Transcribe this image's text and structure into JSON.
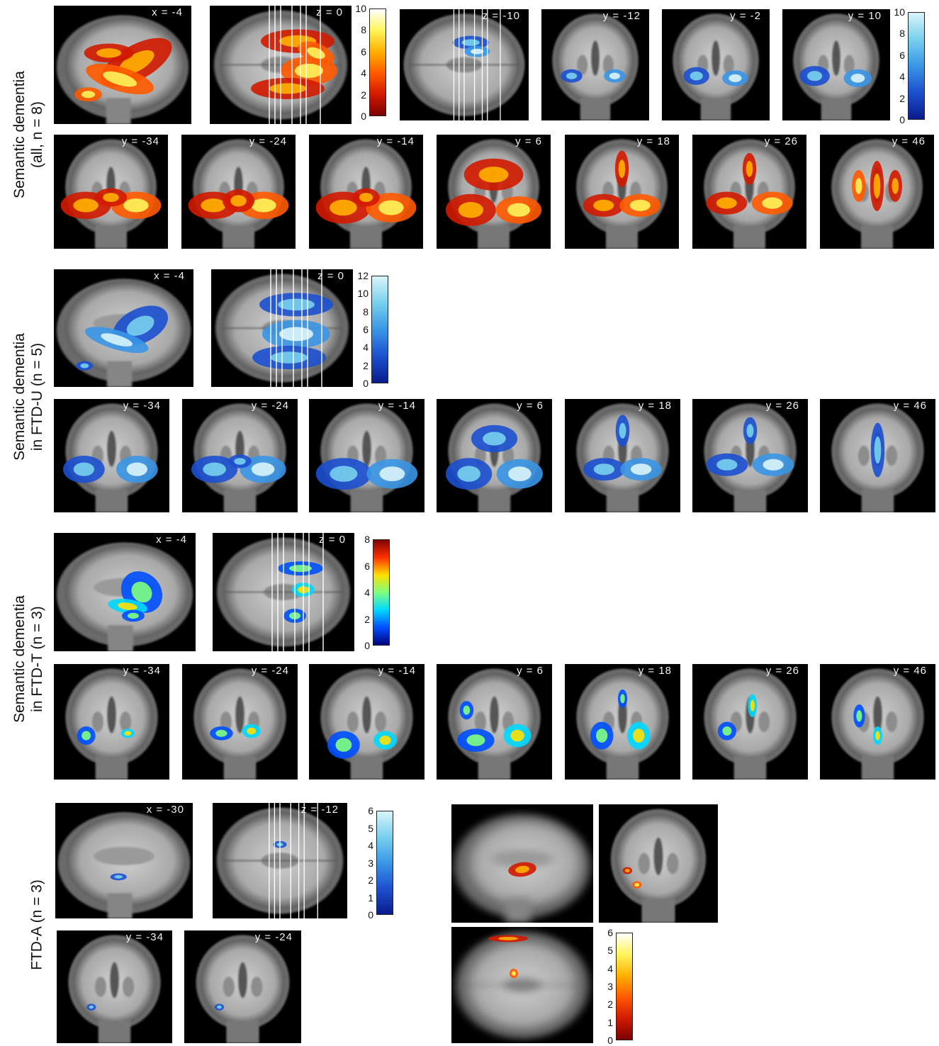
{
  "row_labels": [
    {
      "lines": [
        "Semantic dementia",
        "(all, n = 8)"
      ]
    },
    {
      "lines": [
        "Semantic dementia",
        "in FTD-U (n = 5)"
      ]
    },
    {
      "lines": [
        "Semantic dementia",
        "in FTD-T (n = 3)"
      ]
    },
    {
      "lines": [
        "FTD-A (n = 3)"
      ]
    }
  ],
  "colormaps": {
    "hot": [
      "#7a0000",
      "#d21a00",
      "#ff5a00",
      "#ffb000",
      "#fff45a",
      "#ffffff"
    ],
    "cool": [
      "#0a1c8c",
      "#1c50d0",
      "#3a96e6",
      "#78d0ee",
      "#d9f4fa"
    ],
    "jet": [
      "#00007f",
      "#0050ff",
      "#00d8ff",
      "#7fff7f",
      "#ffe000",
      "#ff3000",
      "#800000"
    ]
  },
  "colorbars": [
    {
      "id": "cb1",
      "cmap": "hot",
      "ticks": [
        "10",
        "8",
        "6",
        "4",
        "2",
        "0"
      ]
    },
    {
      "id": "cb2",
      "cmap": "cool",
      "ticks": [
        "10",
        "8",
        "6",
        "4",
        "2",
        "0"
      ]
    },
    {
      "id": "cb3",
      "cmap": "cool",
      "ticks": [
        "12",
        "10",
        "8",
        "6",
        "4",
        "2",
        "0"
      ]
    },
    {
      "id": "cb4",
      "cmap": "jet",
      "ticks": [
        "8",
        "6",
        "4",
        "2",
        "0"
      ]
    },
    {
      "id": "cb5",
      "cmap": "cool",
      "ticks": [
        "6",
        "5",
        "4",
        "3",
        "2",
        "1",
        "0"
      ]
    },
    {
      "id": "cb6",
      "cmap": "hot",
      "ticks": [
        "6",
        "5",
        "4",
        "3",
        "2",
        "1",
        "0"
      ]
    }
  ],
  "panels": [
    {
      "id": "p1",
      "view": "sag",
      "label": "x = -4",
      "overlay": "hot",
      "blobs": [
        [
          60,
          48,
          30,
          14,
          -35
        ],
        [
          48,
          62,
          26,
          10,
          20
        ],
        [
          40,
          40,
          18,
          8,
          0
        ],
        [
          25,
          75,
          10,
          6,
          0
        ]
      ]
    },
    {
      "id": "p2",
      "view": "axial",
      "label": "z = 0",
      "overlay": "hot",
      "slicelines": true,
      "blobs": [
        [
          62,
          30,
          26,
          10,
          0
        ],
        [
          70,
          55,
          20,
          12,
          0
        ],
        [
          55,
          70,
          26,
          9,
          0
        ],
        [
          75,
          40,
          14,
          8,
          30
        ]
      ]
    },
    {
      "id": "p3",
      "view": "axial",
      "label": "z = -10",
      "overlay": "cool",
      "slicelines": true,
      "blobs": [
        [
          55,
          30,
          14,
          6,
          0
        ],
        [
          60,
          38,
          10,
          5,
          0
        ]
      ]
    },
    {
      "id": "p4",
      "view": "cor",
      "label": "y = -12",
      "overlay": "cool",
      "blobs": [
        [
          28,
          60,
          10,
          6,
          0
        ],
        [
          68,
          60,
          10,
          6,
          0
        ]
      ]
    },
    {
      "id": "p5",
      "view": "cor",
      "label": "y = -2",
      "overlay": "cool",
      "blobs": [
        [
          32,
          60,
          12,
          8,
          0
        ],
        [
          68,
          62,
          12,
          7,
          0
        ]
      ]
    },
    {
      "id": "p6",
      "view": "cor",
      "label": "y = 10",
      "overlay": "cool",
      "blobs": [
        [
          30,
          60,
          14,
          9,
          0
        ],
        [
          70,
          62,
          13,
          8,
          0
        ]
      ]
    },
    {
      "id": "p7",
      "view": "cor",
      "label": "y = -34",
      "overlay": "hot",
      "blobs": [
        [
          28,
          62,
          22,
          12,
          0
        ],
        [
          72,
          62,
          22,
          12,
          0
        ],
        [
          50,
          55,
          14,
          8,
          0
        ]
      ]
    },
    {
      "id": "p8",
      "view": "cor",
      "label": "y = -24",
      "overlay": "hot",
      "blobs": [
        [
          28,
          62,
          22,
          12,
          0
        ],
        [
          72,
          62,
          22,
          12,
          0
        ],
        [
          50,
          58,
          14,
          10,
          0
        ]
      ]
    },
    {
      "id": "p9",
      "view": "cor",
      "label": "y = -14",
      "overlay": "hot",
      "blobs": [
        [
          30,
          64,
          24,
          14,
          0
        ],
        [
          72,
          64,
          22,
          13,
          0
        ],
        [
          50,
          55,
          12,
          8,
          0
        ]
      ]
    },
    {
      "id": "p10",
      "view": "cor",
      "label": "y = 6",
      "overlay": "hot",
      "blobs": [
        [
          30,
          66,
          22,
          14,
          0
        ],
        [
          72,
          66,
          20,
          12,
          0
        ],
        [
          50,
          35,
          26,
          14,
          0
        ]
      ]
    },
    {
      "id": "p11",
      "view": "cor",
      "label": "y = 18",
      "overlay": "hot",
      "blobs": [
        [
          34,
          62,
          18,
          10,
          0
        ],
        [
          66,
          62,
          18,
          10,
          0
        ],
        [
          50,
          30,
          6,
          16,
          0
        ]
      ]
    },
    {
      "id": "p12",
      "view": "cor",
      "label": "y = 26",
      "overlay": "hot",
      "blobs": [
        [
          30,
          60,
          18,
          10,
          0
        ],
        [
          70,
          60,
          18,
          10,
          0
        ],
        [
          50,
          30,
          6,
          14,
          0
        ]
      ]
    },
    {
      "id": "p13",
      "view": "cor",
      "label": "y = 46",
      "overlay": "hot",
      "blobs": [
        [
          50,
          45,
          6,
          22,
          0
        ],
        [
          34,
          45,
          6,
          14,
          0
        ],
        [
          66,
          45,
          6,
          14,
          0
        ]
      ]
    },
    {
      "id": "p14",
      "view": "sag",
      "label": "x = -4",
      "overlay": "cool",
      "blobs": [
        [
          62,
          48,
          22,
          14,
          -35
        ],
        [
          45,
          60,
          24,
          8,
          20
        ],
        [
          22,
          82,
          6,
          4,
          0
        ]
      ]
    },
    {
      "id": "p15",
      "view": "axial",
      "label": "z = 0",
      "overlay": "cool",
      "slicelines": true,
      "blobs": [
        [
          60,
          30,
          26,
          10,
          0
        ],
        [
          60,
          55,
          24,
          12,
          0
        ],
        [
          55,
          75,
          26,
          10,
          0
        ]
      ]
    },
    {
      "id": "p16",
      "view": "cor",
      "label": "y = -34",
      "overlay": "cool",
      "blobs": [
        [
          26,
          62,
          18,
          12,
          0
        ],
        [
          72,
          62,
          18,
          12,
          0
        ]
      ]
    },
    {
      "id": "p17",
      "view": "cor",
      "label": "y = -24",
      "overlay": "cool",
      "blobs": [
        [
          28,
          62,
          20,
          12,
          0
        ],
        [
          70,
          62,
          20,
          12,
          0
        ],
        [
          50,
          55,
          10,
          6,
          0
        ]
      ]
    },
    {
      "id": "p18",
      "view": "cor",
      "label": "y = -14",
      "overlay": "cool",
      "blobs": [
        [
          30,
          66,
          24,
          14,
          0
        ],
        [
          72,
          66,
          22,
          13,
          0
        ]
      ]
    },
    {
      "id": "p19",
      "view": "cor",
      "label": "y = 6",
      "overlay": "cool",
      "blobs": [
        [
          28,
          66,
          20,
          14,
          0
        ],
        [
          72,
          66,
          20,
          13,
          0
        ],
        [
          50,
          35,
          20,
          12,
          0
        ]
      ]
    },
    {
      "id": "p20",
      "view": "cor",
      "label": "y = 18",
      "overlay": "cool",
      "blobs": [
        [
          34,
          62,
          18,
          10,
          0
        ],
        [
          66,
          62,
          18,
          10,
          0
        ],
        [
          50,
          28,
          6,
          14,
          0
        ]
      ]
    },
    {
      "id": "p21",
      "view": "cor",
      "label": "y = 26",
      "overlay": "cool",
      "blobs": [
        [
          30,
          58,
          18,
          10,
          0
        ],
        [
          70,
          58,
          18,
          10,
          0
        ],
        [
          50,
          28,
          6,
          12,
          0
        ]
      ]
    },
    {
      "id": "p22",
      "view": "cor",
      "label": "y = 46",
      "overlay": "cool",
      "blobs": [
        [
          50,
          45,
          6,
          24,
          0
        ]
      ]
    },
    {
      "id": "p23",
      "view": "sag",
      "label": "x = -4",
      "overlay": "jet",
      "blobs": [
        [
          62,
          50,
          14,
          18,
          -20
        ],
        [
          52,
          62,
          14,
          6,
          10
        ],
        [
          56,
          70,
          8,
          5,
          0
        ]
      ]
    },
    {
      "id": "p24",
      "view": "axial",
      "label": "z = 0",
      "overlay": "jet",
      "slicelines": true,
      "blobs": [
        [
          62,
          30,
          16,
          6,
          0
        ],
        [
          64,
          48,
          8,
          6,
          0
        ],
        [
          58,
          70,
          8,
          6,
          0
        ]
      ]
    },
    {
      "id": "p25",
      "view": "cor",
      "label": "y = -34",
      "overlay": "jet",
      "blobs": [
        [
          28,
          62,
          8,
          8,
          0
        ],
        [
          64,
          60,
          6,
          4,
          0
        ]
      ]
    },
    {
      "id": "p26",
      "view": "cor",
      "label": "y = -24",
      "overlay": "jet",
      "blobs": [
        [
          34,
          60,
          10,
          6,
          0
        ],
        [
          60,
          58,
          8,
          6,
          0
        ]
      ]
    },
    {
      "id": "p27",
      "view": "cor",
      "label": "y = -14",
      "overlay": "jet",
      "blobs": [
        [
          30,
          70,
          14,
          12,
          0
        ],
        [
          66,
          66,
          10,
          8,
          0
        ]
      ]
    },
    {
      "id": "p28",
      "view": "cor",
      "label": "y = 6",
      "overlay": "jet",
      "blobs": [
        [
          34,
          66,
          16,
          10,
          0
        ],
        [
          70,
          62,
          12,
          10,
          0
        ],
        [
          26,
          40,
          6,
          8,
          0
        ]
      ]
    },
    {
      "id": "p29",
      "view": "cor",
      "label": "y = 18",
      "overlay": "jet",
      "blobs": [
        [
          32,
          62,
          10,
          12,
          0
        ],
        [
          64,
          62,
          10,
          12,
          0
        ],
        [
          50,
          30,
          4,
          8,
          0
        ]
      ]
    },
    {
      "id": "p30",
      "view": "cor",
      "label": "y = 26",
      "overlay": "jet",
      "blobs": [
        [
          30,
          58,
          8,
          8,
          0
        ],
        [
          52,
          36,
          4,
          10,
          0
        ]
      ]
    },
    {
      "id": "p31",
      "view": "cor",
      "label": "y = 46",
      "overlay": "jet",
      "blobs": [
        [
          34,
          45,
          5,
          10,
          0
        ],
        [
          50,
          62,
          4,
          8,
          0
        ]
      ]
    },
    {
      "id": "p32",
      "view": "sag",
      "label": "x = -30",
      "overlay": "cool",
      "blobs": [
        [
          46,
          64,
          6,
          3,
          0
        ]
      ]
    },
    {
      "id": "p33",
      "view": "axial",
      "label": "z = -12",
      "overlay": "cool",
      "slicelines": true,
      "blobs": [
        [
          50,
          36,
          5,
          3,
          0
        ]
      ]
    },
    {
      "id": "p34",
      "view": "cor",
      "label": "y = -34",
      "overlay": "cool",
      "blobs": [
        [
          30,
          68,
          4,
          3,
          0
        ]
      ]
    },
    {
      "id": "p35",
      "view": "cor",
      "label": "y = -24",
      "overlay": "cool",
      "blobs": [
        [
          30,
          68,
          4,
          3,
          0
        ]
      ]
    },
    {
      "id": "p36",
      "view": "sagblur",
      "label": "",
      "overlay": "hot",
      "blobs": [
        [
          50,
          55,
          10,
          6,
          -10
        ]
      ]
    },
    {
      "id": "p37",
      "view": "cor",
      "label": "",
      "overlay": "hot",
      "blobs": [
        [
          24,
          56,
          4,
          3,
          0
        ],
        [
          32,
          68,
          4,
          3,
          0
        ]
      ]
    },
    {
      "id": "p38",
      "view": "axialblur",
      "label": "",
      "overlay": "hot",
      "blobs": [
        [
          40,
          10,
          14,
          3,
          0
        ],
        [
          44,
          40,
          3,
          4,
          0
        ]
      ]
    }
  ]
}
